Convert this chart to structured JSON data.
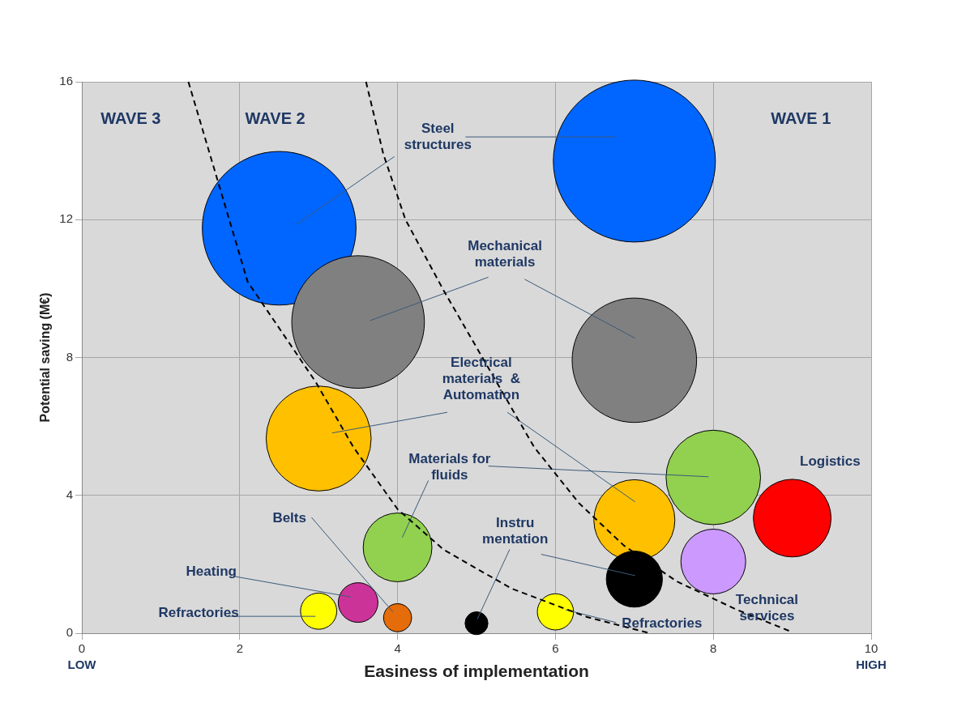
{
  "chart_data": {
    "type": "bubble",
    "xlabel": "Easiness of implementation",
    "ylabel": "Potential saving (M€)",
    "xlim": [
      0,
      10
    ],
    "xticks": [
      0,
      2,
      4,
      6,
      8,
      10
    ],
    "ylim": [
      0,
      16
    ],
    "yticks": [
      0,
      4,
      8,
      12,
      16
    ],
    "grid": true,
    "legend": false,
    "series": [
      {
        "x": [
          7,
          2.5,
          3.5,
          7,
          3,
          8,
          9,
          7,
          8,
          7,
          4,
          3.5,
          3,
          4,
          5,
          6
        ],
        "values": [
          13.7,
          11.75,
          9.03,
          7.92,
          5.65,
          4.52,
          3.34,
          3.28,
          2.08,
          1.57,
          2.49,
          0.89,
          0.64,
          0.45,
          0.29,
          0.62
        ],
        "sizes": [
          1,
          0.9,
          0.67,
          0.59,
          0.42,
          0.34,
          0.23,
          0.25,
          0.16,
          0.12,
          0.18,
          0.06,
          0.05,
          0.03,
          0.02,
          0.05
        ],
        "colors": [
          "#0066ff",
          "#0066ff",
          "#808080",
          "#808080",
          "#ffc000",
          "#92d050",
          "#ff0000",
          "#ffc000",
          "#cc99ff",
          "#000000",
          "#92d050",
          "#cc3399",
          "#ffff00",
          "#e46c0a",
          "#000000",
          "#ffff00"
        ]
      },
      {
        "type": "line",
        "line_style": "dashed",
        "marker": "none",
        "color": "#000000",
        "x": [
          1.35,
          2.1,
          2.96,
          3.44,
          4.0,
          4.58,
          5.44,
          6.4,
          7.2
        ],
        "values": [
          16,
          10.2,
          7.3,
          5.4,
          3.6,
          2.43,
          1.3,
          0.47,
          0
        ]
      },
      {
        "type": "line",
        "line_style": "dashed",
        "marker": "none",
        "color": "#000000",
        "x": [
          3.6,
          3.82,
          4.1,
          4.58,
          5.15,
          5.73,
          6.3,
          6.87,
          7.54,
          8.3,
          8.97
        ],
        "values": [
          16,
          13.9,
          12.0,
          9.96,
          7.7,
          5.4,
          3.77,
          2.54,
          1.5,
          0.68,
          0.06
        ]
      },
      {
        "type": "line",
        "marker": "none",
        "color": "#3b5a7a",
        "x": [
          4.86,
          6.77
        ],
        "values": [
          14.4,
          14.4
        ]
      },
      {
        "type": "line",
        "marker": "none",
        "color": "#3b5a7a",
        "x": [
          3.96,
          2.72
        ],
        "values": [
          13.83,
          11.86
        ]
      },
      {
        "type": "line",
        "marker": "none",
        "color": "#3b5a7a",
        "x": [
          5.15,
          3.65
        ],
        "values": [
          10.33,
          9.07
        ]
      },
      {
        "type": "line",
        "marker": "none",
        "color": "#3b5a7a",
        "x": [
          5.61,
          7.01
        ],
        "values": [
          10.27,
          8.56
        ]
      },
      {
        "type": "line",
        "marker": "none",
        "color": "#3b5a7a",
        "x": [
          4.63,
          3.17
        ],
        "values": [
          6.41,
          5.81
        ]
      },
      {
        "type": "line",
        "marker": "none",
        "color": "#3b5a7a",
        "x": [
          5.39,
          7.01
        ],
        "values": [
          6.41,
          3.81
        ]
      },
      {
        "type": "line",
        "marker": "none",
        "color": "#3b5a7a",
        "x": [
          5.15,
          7.94
        ],
        "values": [
          4.85,
          4.54
        ]
      },
      {
        "type": "line",
        "marker": "none",
        "color": "#3b5a7a",
        "x": [
          4.39,
          4.06
        ],
        "values": [
          4.43,
          2.78
        ]
      },
      {
        "type": "line",
        "marker": "none",
        "color": "#3b5a7a",
        "x": [
          2.91,
          3.94
        ],
        "values": [
          3.36,
          0.62
        ]
      },
      {
        "type": "line",
        "marker": "none",
        "color": "#3b5a7a",
        "x": [
          5.82,
          7.01
        ],
        "values": [
          2.29,
          1.67
        ]
      },
      {
        "type": "line",
        "marker": "none",
        "color": "#3b5a7a",
        "x": [
          5.42,
          5.01
        ],
        "values": [
          2.43,
          0.41
        ]
      },
      {
        "type": "line",
        "marker": "none",
        "color": "#3b5a7a",
        "x": [
          1.93,
          3.41
        ],
        "values": [
          1.65,
          1.05
        ]
      },
      {
        "type": "line",
        "marker": "none",
        "color": "#3b5a7a",
        "x": [
          1.86,
          2.96
        ],
        "values": [
          0.49,
          0.49
        ]
      },
      {
        "type": "line",
        "marker": "none",
        "color": "#3b5a7a",
        "x": [
          6.77,
          6.13
        ],
        "values": [
          0.31,
          0.68
        ]
      }
    ],
    "annotations": [
      "WAVE 3",
      "WAVE 2",
      "WAVE 1",
      "Steel\nstructures",
      "Mechanical\nmaterials",
      "Electrical\nmaterials  &\nAutomation",
      "Materials for\nfluids",
      "Logistics",
      "Belts",
      "Instru\nmentation",
      "Heating",
      "Refractories",
      "Refractories",
      "Technical\nservices",
      "LOW",
      "HIGH"
    ]
  }
}
